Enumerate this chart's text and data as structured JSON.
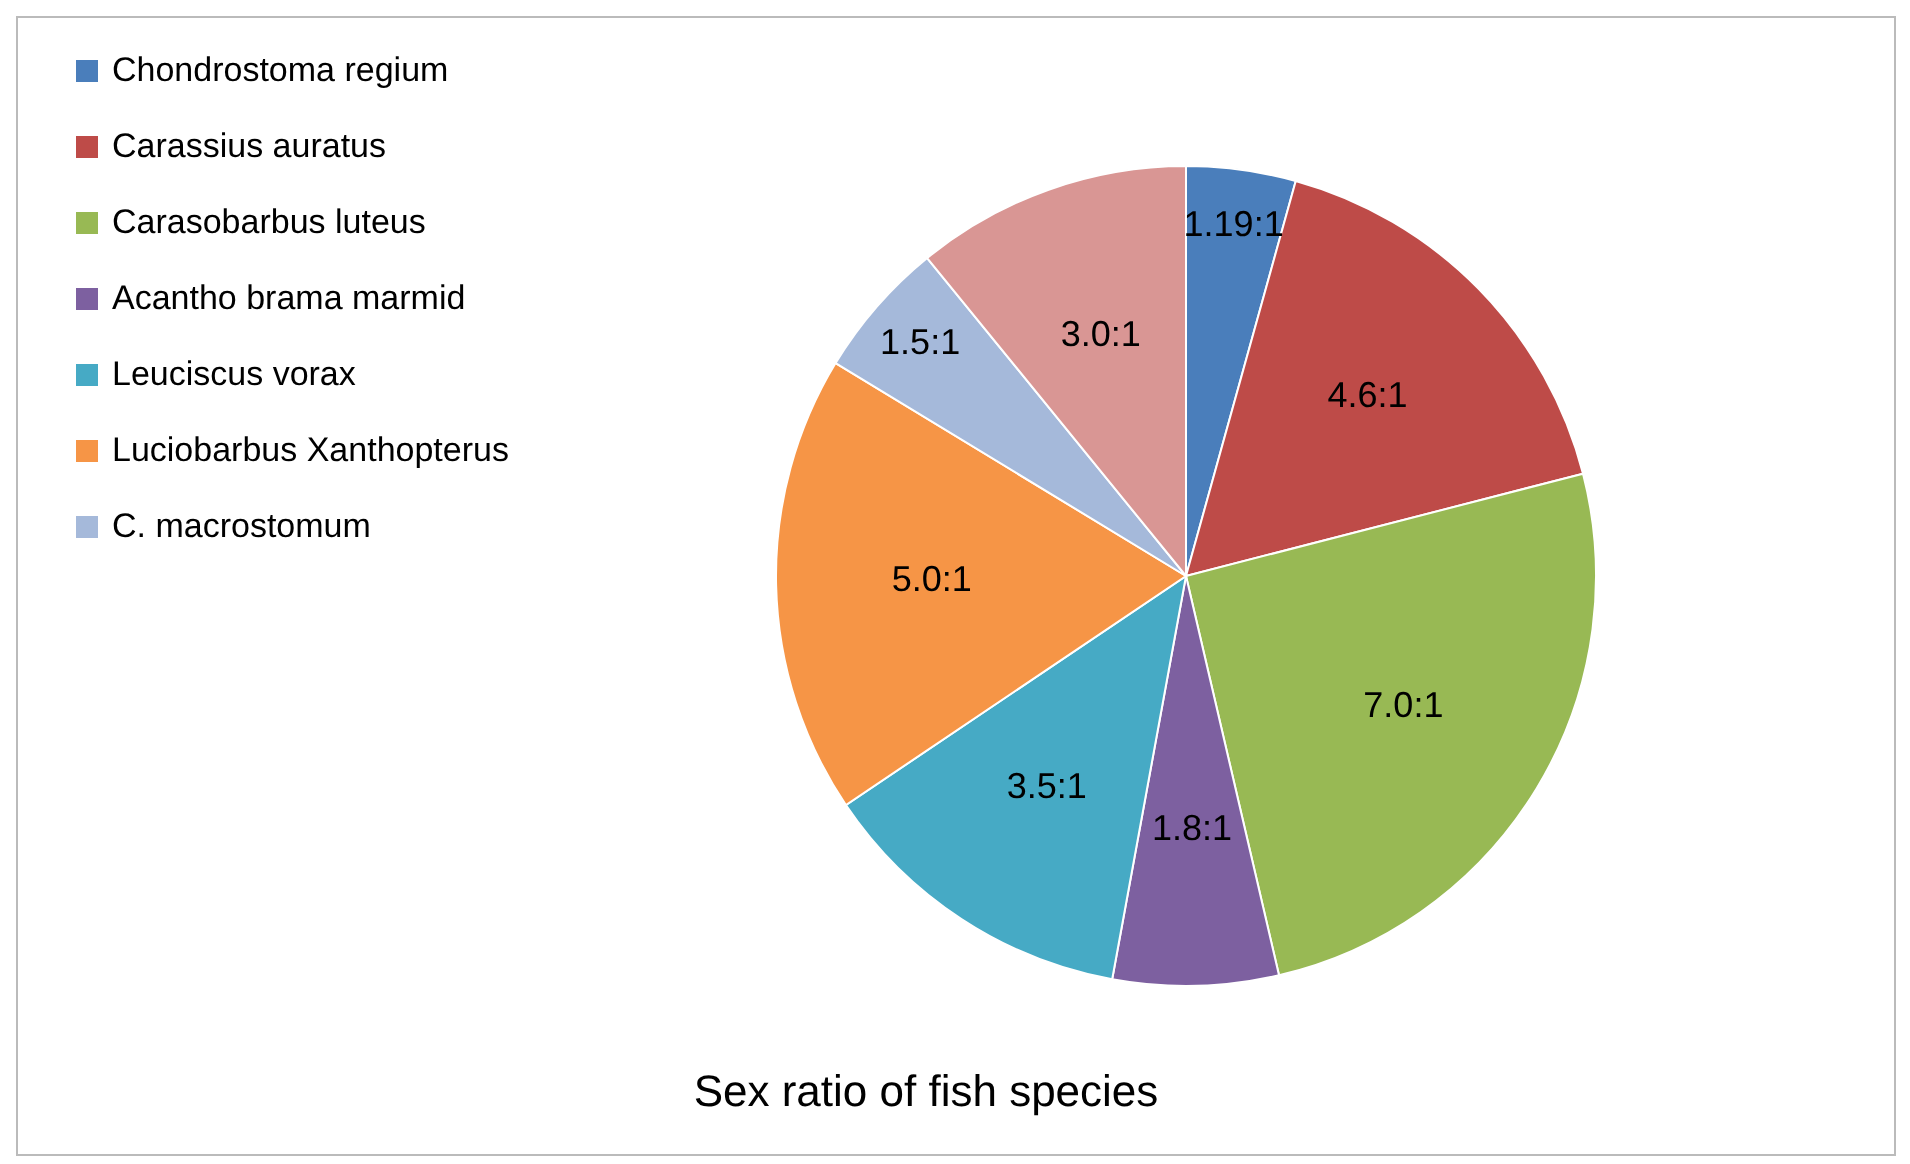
{
  "chart_data": {
    "type": "pie",
    "title": "Sex ratio of fish species",
    "categories": [
      "Chondrostoma regium",
      "Carassius auratus",
      "Carasobarbus luteus",
      "Acantho brama marmid",
      "Leuciscus vorax",
      "Luciobarbus Xanthopterus",
      "C. macrostomum",
      null
    ],
    "values": [
      1.19,
      4.6,
      7.0,
      1.8,
      3.5,
      5.0,
      1.5,
      3.0
    ],
    "value_labels": [
      "1.19:1",
      "4.6:1",
      "7.0:1",
      "1.8:1",
      "3.5:1",
      "5.0:1",
      "1.5:1",
      "3.0:1"
    ],
    "colors": [
      "#4a7ebb",
      "#be4b48",
      "#98b954",
      "#7d60a0",
      "#46aac5",
      "#f69546",
      "#a5b9da",
      "#d99694"
    ],
    "legend": "left"
  }
}
